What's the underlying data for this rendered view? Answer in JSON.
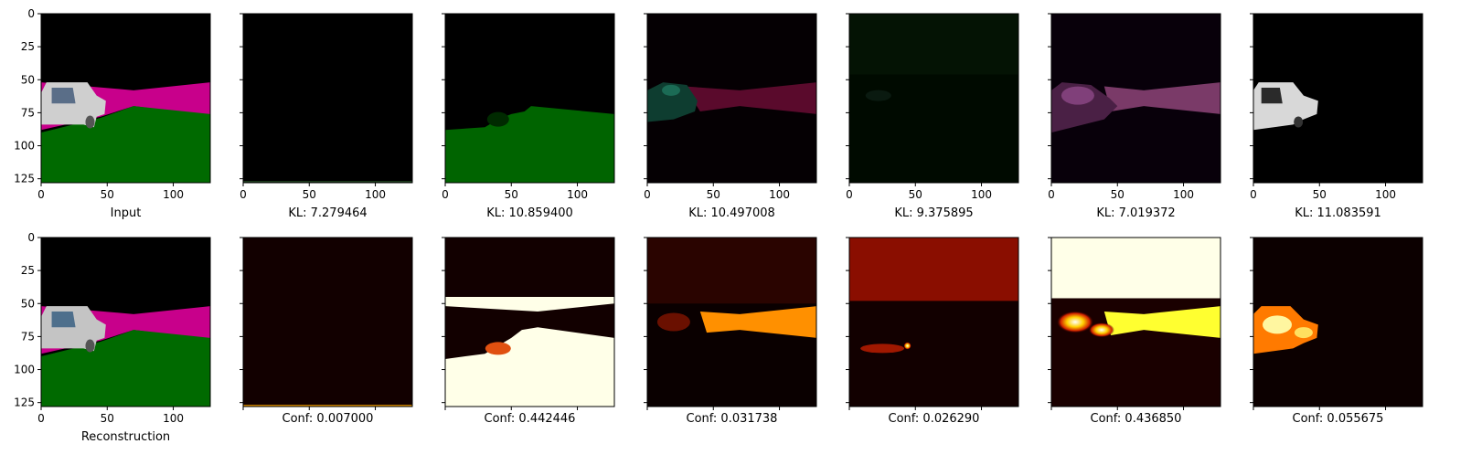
{
  "chart_data": {
    "type": "image-grid",
    "rows": [
      {
        "id": "top",
        "panels": [
          {
            "caption": "Input",
            "content": "scene-input"
          },
          {
            "caption": "KL: 7.279464",
            "content": "slot-empty"
          },
          {
            "caption": "KL: 10.859400",
            "content": "slot-ground"
          },
          {
            "caption": "KL: 10.497008",
            "content": "slot-road-dark"
          },
          {
            "caption": "KL: 9.375895",
            "content": "slot-faint"
          },
          {
            "caption": "KL: 7.019372",
            "content": "slot-road-pink"
          },
          {
            "caption": "KL: 11.083591",
            "content": "slot-car"
          }
        ]
      },
      {
        "id": "bottom",
        "panels": [
          {
            "caption": "Reconstruction",
            "content": "scene-recon",
            "yticks": true
          },
          {
            "caption": "Conf: 0.007000",
            "content": "mask-empty"
          },
          {
            "caption": "Conf: 0.442446",
            "content": "mask-ground"
          },
          {
            "caption": "Conf: 0.031738",
            "content": "mask-road"
          },
          {
            "caption": "Conf: 0.026290",
            "content": "mask-sky"
          },
          {
            "caption": "Conf: 0.436850",
            "content": "mask-sky-road"
          },
          {
            "caption": "Conf: 0.055675",
            "content": "mask-car"
          }
        ]
      }
    ],
    "xlim": [
      0,
      128
    ],
    "ylim": [
      128,
      0
    ],
    "xticks": [
      0,
      50,
      100
    ],
    "yticks": [
      0,
      25,
      50,
      75,
      100,
      125
    ],
    "colors": {
      "sky": "#000000",
      "road": "#c8008b",
      "ground": "#006a00",
      "car": "#cfcfcf",
      "mask_bg": "#120000",
      "mask_hot": "#ff9a00",
      "mask_white": "#ffffe8"
    }
  }
}
